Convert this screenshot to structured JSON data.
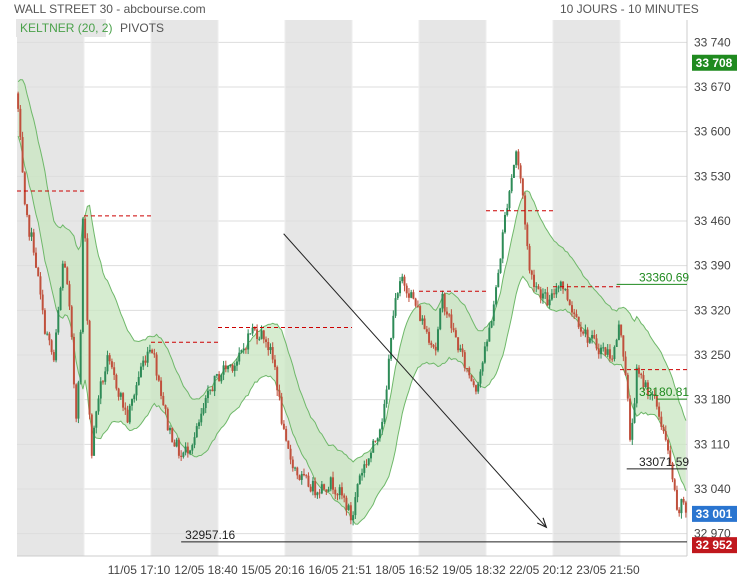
{
  "header": {
    "title": "WALL STREET 30 - abcbourse.com",
    "period": "10 JOURS - 10 MINUTES"
  },
  "legend": {
    "keltner": "KELTNER (20, 2)",
    "pivots": "PIVOTS"
  },
  "colors": {
    "up": "#2e8b57",
    "down": "#c0503c",
    "band_fill": "#c8e6c0",
    "band_line": "#6fb86a",
    "pivot": "#cc0000",
    "shade": "#e6e6e6",
    "last_up": "#1f8a1f",
    "last_down": "#c0181d",
    "last_close": "#2a75d0"
  },
  "chart_data": {
    "type": "candlestick",
    "title": "WALL STREET 30 - abcbourse.com",
    "subtitle": "10 JOURS - 10 MINUTES",
    "y_ticks": [
      "33 740",
      "33 670",
      "33 600",
      "33 530",
      "33 460",
      "33 390",
      "33 320",
      "33 250",
      "33 180",
      "33 110",
      "33 040",
      "32 970"
    ],
    "y_tick_values": [
      33740,
      33670,
      33600,
      33530,
      33460,
      33390,
      33320,
      33250,
      33180,
      33110,
      33040,
      32970
    ],
    "ylim": [
      32935,
      33775
    ],
    "x_ticks": [
      "11/05 17:10",
      "12/05 18:40",
      "15/05 20:16",
      "16/05 21:51",
      "18/05 16:52",
      "19/05 18:32",
      "22/05 20:12",
      "23/05 21:50"
    ],
    "sessions": 10,
    "shaded_sessions": [
      0,
      2,
      4,
      6,
      8
    ],
    "close_path": [
      {
        "x": 0.0,
        "y": 33660
      },
      {
        "x": 0.12,
        "y": 33470
      },
      {
        "x": 0.25,
        "y": 33420
      },
      {
        "x": 0.4,
        "y": 33300
      },
      {
        "x": 0.55,
        "y": 33240
      },
      {
        "x": 0.7,
        "y": 33410
      },
      {
        "x": 0.8,
        "y": 33300
      },
      {
        "x": 0.88,
        "y": 33150
      },
      {
        "x": 0.95,
        "y": 33280
      },
      {
        "x": 0.99,
        "y": 33500
      },
      {
        "x": 1.04,
        "y": 33360
      },
      {
        "x": 1.1,
        "y": 33080
      },
      {
        "x": 1.2,
        "y": 33180
      },
      {
        "x": 1.35,
        "y": 33240
      },
      {
        "x": 1.5,
        "y": 33200
      },
      {
        "x": 1.65,
        "y": 33150
      },
      {
        "x": 1.85,
        "y": 33230
      },
      {
        "x": 2.0,
        "y": 33270
      },
      {
        "x": 2.1,
        "y": 33220
      },
      {
        "x": 2.25,
        "y": 33140
      },
      {
        "x": 2.45,
        "y": 33090
      },
      {
        "x": 2.65,
        "y": 33120
      },
      {
        "x": 2.9,
        "y": 33200
      },
      {
        "x": 3.1,
        "y": 33230
      },
      {
        "x": 3.3,
        "y": 33240
      },
      {
        "x": 3.5,
        "y": 33290
      },
      {
        "x": 3.7,
        "y": 33280
      },
      {
        "x": 3.85,
        "y": 33230
      },
      {
        "x": 4.0,
        "y": 33110
      },
      {
        "x": 4.2,
        "y": 33060
      },
      {
        "x": 4.45,
        "y": 33040
      },
      {
        "x": 4.7,
        "y": 33050
      },
      {
        "x": 4.9,
        "y": 33020
      },
      {
        "x": 5.0,
        "y": 32990
      },
      {
        "x": 5.1,
        "y": 33060
      },
      {
        "x": 5.3,
        "y": 33100
      },
      {
        "x": 5.5,
        "y": 33170
      },
      {
        "x": 5.6,
        "y": 33310
      },
      {
        "x": 5.75,
        "y": 33370
      },
      {
        "x": 5.9,
        "y": 33340
      },
      {
        "x": 6.1,
        "y": 33290
      },
      {
        "x": 6.25,
        "y": 33260
      },
      {
        "x": 6.35,
        "y": 33340
      },
      {
        "x": 6.5,
        "y": 33290
      },
      {
        "x": 6.7,
        "y": 33230
      },
      {
        "x": 6.85,
        "y": 33200
      },
      {
        "x": 7.0,
        "y": 33260
      },
      {
        "x": 7.15,
        "y": 33350
      },
      {
        "x": 7.3,
        "y": 33480
      },
      {
        "x": 7.45,
        "y": 33570
      },
      {
        "x": 7.55,
        "y": 33500
      },
      {
        "x": 7.65,
        "y": 33380
      },
      {
        "x": 7.8,
        "y": 33350
      },
      {
        "x": 7.95,
        "y": 33330
      },
      {
        "x": 8.1,
        "y": 33370
      },
      {
        "x": 8.3,
        "y": 33320
      },
      {
        "x": 8.5,
        "y": 33280
      },
      {
        "x": 8.7,
        "y": 33260
      },
      {
        "x": 8.9,
        "y": 33250
      },
      {
        "x": 9.0,
        "y": 33300
      },
      {
        "x": 9.1,
        "y": 33210
      },
      {
        "x": 9.15,
        "y": 33110
      },
      {
        "x": 9.25,
        "y": 33220
      },
      {
        "x": 9.4,
        "y": 33200
      },
      {
        "x": 9.55,
        "y": 33170
      },
      {
        "x": 9.65,
        "y": 33130
      },
      {
        "x": 9.78,
        "y": 33060
      },
      {
        "x": 9.85,
        "y": 33000
      },
      {
        "x": 9.95,
        "y": 33020
      },
      {
        "x": 10.0,
        "y": 33001
      }
    ],
    "pivots": [
      {
        "value": 33507,
        "from": 0.0,
        "to": 1.0
      },
      {
        "value": 33468,
        "from": 1.0,
        "to": 2.0
      },
      {
        "value": 33270,
        "from": 2.0,
        "to": 3.0
      },
      {
        "value": 33293,
        "from": 3.0,
        "to": 5.0
      },
      {
        "value": 33350,
        "from": 6.0,
        "to": 7.0
      },
      {
        "value": 33476,
        "from": 7.0,
        "to": 8.0
      },
      {
        "value": 33357,
        "from": 8.0,
        "to": 9.0
      },
      {
        "value": 33227,
        "from": 9.0,
        "to": 10.0
      }
    ],
    "annotations": [
      {
        "label": "33360.69",
        "value": 33360.69,
        "from": 8.95,
        "to": 10.0,
        "color": "#1f8a1f"
      },
      {
        "label": "33180.81",
        "value": 33180.81,
        "from": 9.55,
        "to": 10.0,
        "color": "#1f8a1f"
      },
      {
        "label": "33071.59",
        "value": 33071.59,
        "from": 9.1,
        "to": 10.0,
        "color": "#222222"
      },
      {
        "label": "32957.16",
        "value": 32957.16,
        "from": 2.45,
        "to": 10.0,
        "color": "#222222"
      }
    ],
    "trendline": {
      "from": {
        "x": 3.98,
        "y": 33440
      },
      "to": {
        "x": 7.9,
        "y": 32980
      }
    },
    "last_values": [
      {
        "label": "33 708",
        "value": 33708,
        "color": "#1f8a1f"
      },
      {
        "label": "33 001",
        "value": 33001,
        "color": "#2a75d0"
      },
      {
        "label": "32 952",
        "value": 32952,
        "color": "#c0181d"
      }
    ]
  }
}
